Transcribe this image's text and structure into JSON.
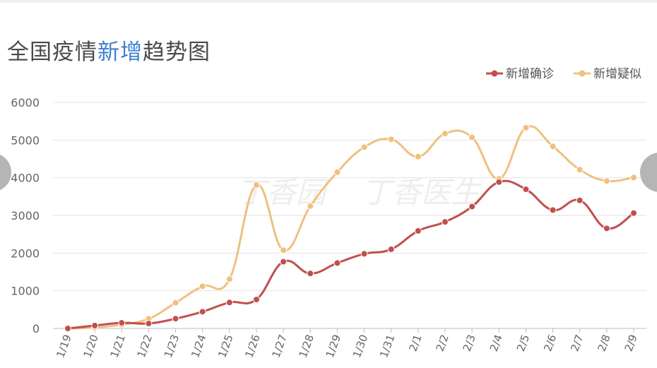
{
  "title": {
    "prefix": "全国疫情",
    "highlight": "新增",
    "suffix": "趋势图"
  },
  "watermark": {
    "left": "丁香园",
    "right": "丁香医生"
  },
  "colors": {
    "confirmed": "#c0504d",
    "suspected": "#f0c07e",
    "highlight": "#3f7fd1"
  },
  "chart_data": {
    "type": "line",
    "title": "全国疫情新增趋势图",
    "x": [
      "1/19",
      "1/20",
      "1/21",
      "1/22",
      "1/23",
      "1/24",
      "1/25",
      "1/26",
      "1/27",
      "1/28",
      "1/29",
      "1/30",
      "1/31",
      "2/1",
      "2/2",
      "2/3",
      "2/4",
      "2/5",
      "2/6",
      "2/7",
      "2/8",
      "2/9"
    ],
    "ylim": [
      0,
      6000
    ],
    "yticks": [
      0,
      1000,
      2000,
      3000,
      4000,
      5000,
      6000
    ],
    "grid": true,
    "legend": "top-right",
    "smooth": true,
    "series": [
      {
        "name": "新增确诊",
        "color": "#c0504d",
        "values": [
          0,
          77,
          149,
          131,
          259,
          444,
          688,
          769,
          1771,
          1459,
          1737,
          1982,
          2102,
          2590,
          2829,
          3235,
          3887,
          3694,
          3143,
          3399,
          2656,
          3062
        ]
      },
      {
        "name": "新增疑似",
        "color": "#f0c07e",
        "values": [
          0,
          27,
          100,
          257,
          680,
          1118,
          1309,
          3806,
          2077,
          3248,
          4148,
          4812,
          5019,
          4562,
          5173,
          5072,
          3971,
          5328,
          4833,
          4214,
          3916,
          4008
        ]
      }
    ]
  }
}
